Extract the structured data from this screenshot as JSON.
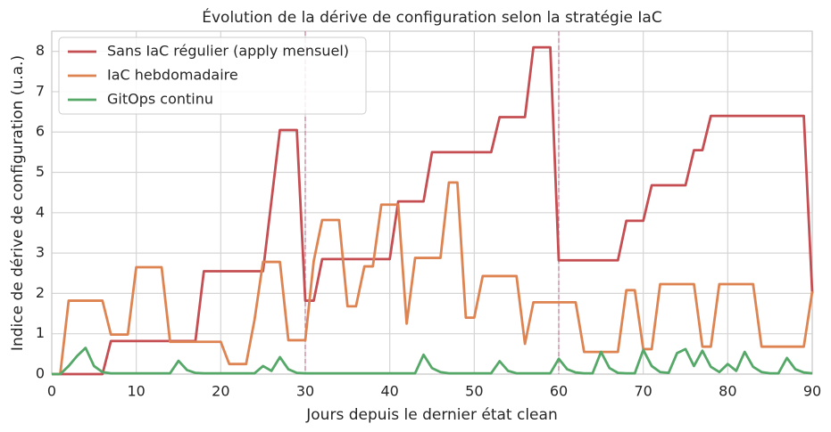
{
  "chart_data": {
    "type": "line",
    "title": "Évolution de la dérive de configuration selon la stratégie IaC",
    "xlabel": "Jours depuis le dernier état clean",
    "ylabel": "Indice de dérive de configuration (u.a.)",
    "x": [
      0,
      1,
      2,
      3,
      4,
      5,
      6,
      7,
      8,
      9,
      10,
      11,
      12,
      13,
      14,
      15,
      16,
      17,
      18,
      19,
      20,
      21,
      22,
      23,
      24,
      25,
      26,
      27,
      28,
      29,
      30,
      31,
      32,
      33,
      34,
      35,
      36,
      37,
      38,
      39,
      40,
      41,
      42,
      43,
      44,
      45,
      46,
      47,
      48,
      49,
      50,
      51,
      52,
      53,
      54,
      55,
      56,
      57,
      58,
      59,
      60,
      61,
      62,
      63,
      64,
      65,
      66,
      67,
      68,
      69,
      70,
      71,
      72,
      73,
      74,
      75,
      76,
      77,
      78,
      79,
      80,
      81,
      82,
      83,
      84,
      85,
      86,
      87,
      88,
      89,
      90
    ],
    "series": [
      {
        "name": "Sans IaC régulier (apply mensuel)",
        "color": "#c44e52",
        "values": [
          0,
          0,
          0,
          0,
          0,
          0,
          0,
          0.82,
          0.82,
          0.82,
          0.82,
          0.82,
          0.82,
          0.82,
          0.82,
          0.82,
          0.82,
          0.82,
          2.55,
          2.55,
          2.55,
          2.55,
          2.55,
          2.55,
          2.55,
          2.55,
          4.3,
          6.05,
          6.05,
          6.05,
          1.82,
          1.82,
          2.85,
          2.85,
          2.85,
          2.85,
          2.85,
          2.85,
          2.85,
          2.85,
          2.85,
          4.28,
          4.28,
          4.28,
          4.28,
          5.5,
          5.5,
          5.5,
          5.5,
          5.5,
          5.5,
          5.5,
          5.5,
          6.37,
          6.37,
          6.37,
          6.37,
          8.1,
          8.1,
          8.1,
          2.82,
          2.82,
          2.82,
          2.82,
          2.82,
          2.82,
          2.82,
          2.82,
          3.8,
          3.8,
          3.8,
          4.68,
          4.68,
          4.68,
          4.68,
          4.68,
          5.55,
          5.55,
          6.4,
          6.4,
          6.4,
          6.4,
          6.4,
          6.4,
          6.4,
          6.4,
          6.4,
          6.4,
          6.4,
          6.4,
          2.0
        ]
      },
      {
        "name": "IaC hebdomadaire",
        "color": "#dd8452",
        "values": [
          0,
          0,
          1.82,
          1.82,
          1.82,
          1.82,
          1.82,
          0.98,
          0.98,
          0.98,
          2.65,
          2.65,
          2.65,
          2.65,
          0.8,
          0.8,
          0.8,
          0.8,
          0.8,
          0.8,
          0.8,
          0.25,
          0.25,
          0.25,
          1.35,
          2.78,
          2.78,
          2.78,
          0.84,
          0.84,
          0.84,
          2.8,
          3.82,
          3.82,
          3.82,
          1.68,
          1.68,
          2.67,
          2.67,
          4.2,
          4.2,
          4.2,
          1.25,
          2.88,
          2.88,
          2.88,
          2.88,
          4.75,
          4.75,
          1.4,
          1.4,
          2.43,
          2.43,
          2.43,
          2.43,
          2.43,
          0.75,
          1.78,
          1.78,
          1.78,
          1.78,
          1.78,
          1.78,
          0.55,
          0.55,
          0.55,
          0.55,
          0.55,
          2.08,
          2.08,
          0.62,
          0.62,
          2.23,
          2.23,
          2.23,
          2.23,
          2.23,
          0.68,
          0.68,
          2.23,
          2.23,
          2.23,
          2.23,
          2.23,
          0.68,
          0.68,
          0.68,
          0.68,
          0.68,
          0.68,
          2.05
        ]
      },
      {
        "name": "GitOps continu",
        "color": "#55a868",
        "values": [
          0,
          0,
          0.2,
          0.45,
          0.65,
          0.2,
          0.05,
          0.02,
          0.02,
          0.02,
          0.02,
          0.02,
          0.02,
          0.02,
          0.02,
          0.33,
          0.1,
          0.03,
          0.02,
          0.02,
          0.02,
          0.02,
          0.02,
          0.02,
          0.02,
          0.2,
          0.08,
          0.42,
          0.12,
          0.03,
          0.02,
          0.02,
          0.02,
          0.02,
          0.02,
          0.02,
          0.02,
          0.02,
          0.02,
          0.02,
          0.02,
          0.02,
          0.02,
          0.02,
          0.48,
          0.15,
          0.05,
          0.02,
          0.02,
          0.02,
          0.02,
          0.02,
          0.02,
          0.32,
          0.08,
          0.02,
          0.02,
          0.02,
          0.02,
          0.02,
          0.38,
          0.12,
          0.04,
          0.02,
          0.02,
          0.55,
          0.15,
          0.03,
          0.02,
          0.02,
          0.6,
          0.2,
          0.05,
          0.03,
          0.52,
          0.62,
          0.2,
          0.58,
          0.18,
          0.05,
          0.25,
          0.08,
          0.55,
          0.18,
          0.05,
          0.02,
          0.02,
          0.4,
          0.12,
          0.04,
          0.02
        ]
      }
    ],
    "vlines": [
      30,
      60
    ],
    "vline_color": "#c77c9a",
    "xlim": [
      0,
      90
    ],
    "xticks": [
      0,
      10,
      20,
      30,
      40,
      50,
      60,
      70,
      80,
      90
    ],
    "ylim": [
      0,
      8.5
    ],
    "yticks": [
      0,
      1,
      2,
      3,
      4,
      5,
      6,
      7,
      8
    ],
    "grid": true,
    "legend": "upper left"
  }
}
